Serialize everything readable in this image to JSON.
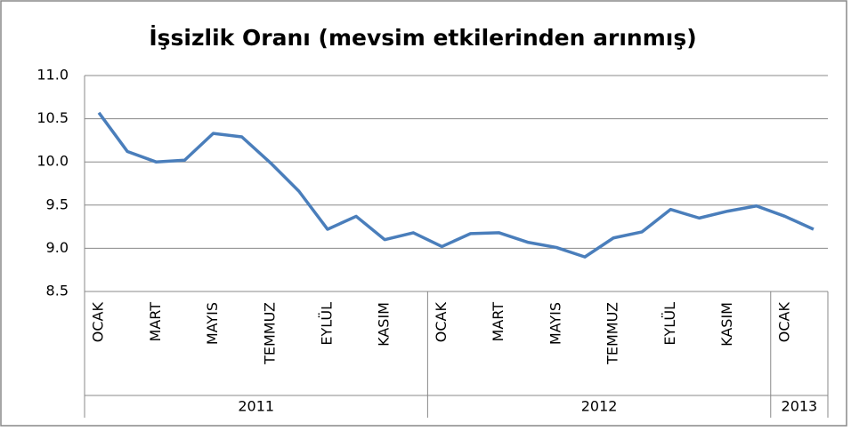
{
  "chart_data": {
    "type": "line",
    "title": "İşsizlik Oranı (mevsim etkilerinden arınmış)",
    "categories": [
      "OCAK",
      null,
      "MART",
      null,
      "MAYIS",
      null,
      "TEMMUZ",
      null,
      "EYLÜL",
      null,
      "KASIM",
      null,
      "OCAK",
      null,
      "MART",
      null,
      "MAYIS",
      null,
      "TEMMUZ",
      null,
      "EYLÜL",
      null,
      "KASIM",
      null,
      "OCAK",
      null
    ],
    "years": [
      "2011",
      "2012",
      "2013"
    ],
    "series": [
      {
        "name": "İşsizlik Oranı",
        "color": "#4a7ebb",
        "values": [
          10.57,
          10.12,
          10.0,
          10.02,
          10.33,
          10.29,
          9.99,
          9.66,
          9.22,
          9.37,
          9.1,
          9.18,
          9.02,
          9.17,
          9.18,
          9.07,
          9.01,
          8.9,
          9.12,
          9.19,
          9.45,
          9.35,
          9.43,
          9.49,
          9.37,
          9.22
        ]
      }
    ],
    "ylim": [
      8.5,
      11.0
    ],
    "yticks": [
      {
        "value": 8.5,
        "label": "8.5"
      },
      {
        "value": 9.0,
        "label": "9.0"
      },
      {
        "value": 9.5,
        "label": "9.5"
      },
      {
        "value": 10.0,
        "label": "10.0"
      },
      {
        "value": 10.5,
        "label": "10.5"
      },
      {
        "value": 11.0,
        "label": "11.0"
      }
    ],
    "grid": true
  }
}
